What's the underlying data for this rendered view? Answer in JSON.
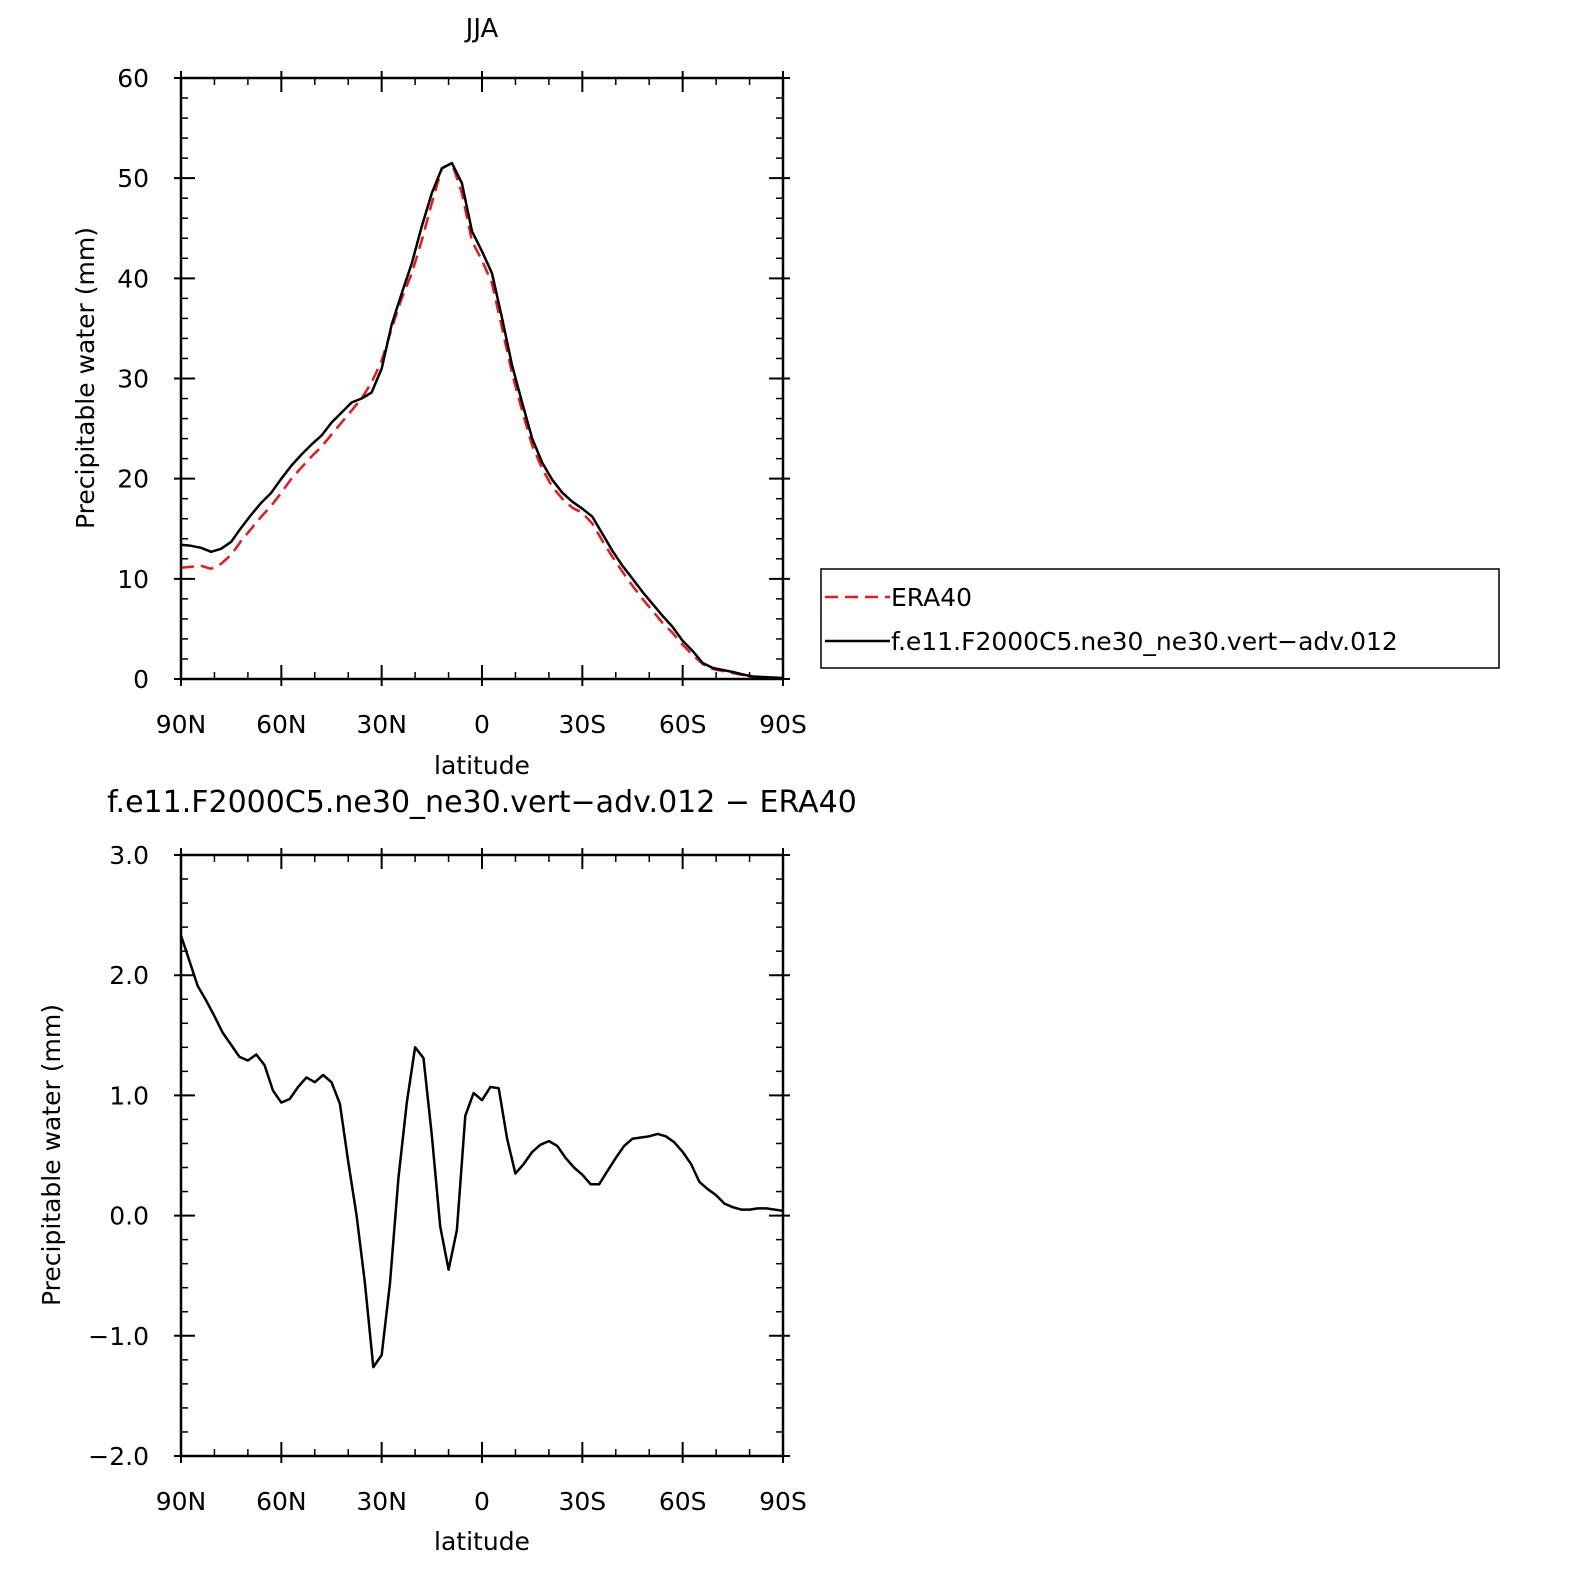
{
  "colors": {
    "era40": "#e8191c",
    "model": "#000000",
    "axis": "#000000",
    "background": "#ffffff"
  },
  "legend": {
    "placement": "right of top panel",
    "items": [
      {
        "label": "ERA40",
        "color": "#e8191c",
        "dashed": true
      },
      {
        "label": "f.e11.F2000C5.ne30_ne30.vert−adv.012",
        "color": "#000000",
        "dashed": false
      }
    ]
  },
  "chart_data": [
    {
      "type": "line",
      "title": "JJA",
      "xlabel": "latitude",
      "ylabel": "Precipitable water (mm)",
      "xlim": [
        90,
        -90
      ],
      "ylim": [
        0,
        60
      ],
      "x_ticks": [
        90,
        60,
        30,
        0,
        -30,
        -60,
        -90
      ],
      "x_tick_labels": [
        "90N",
        "60N",
        "30N",
        "0",
        "30S",
        "60S",
        "90S"
      ],
      "y_ticks": [
        0,
        10,
        20,
        30,
        40,
        50,
        60
      ],
      "y_tick_labels": [
        "0",
        "10",
        "20",
        "30",
        "40",
        "50",
        "60"
      ],
      "x_minor_step": 10,
      "y_minor_step": 2,
      "grid": false,
      "series": [
        {
          "name": "ERA40",
          "color": "#e8191c",
          "dashed": true,
          "x": [
            90,
            87,
            84,
            81,
            78,
            75,
            72,
            69,
            66,
            63,
            60,
            57,
            54,
            51,
            48,
            45,
            42,
            39,
            36,
            33,
            30,
            27,
            24,
            21,
            18,
            15,
            12,
            9,
            6,
            3,
            0,
            -3,
            -6,
            -9,
            -12,
            -15,
            -18,
            -21,
            -24,
            -27,
            -30,
            -33,
            -36,
            -39,
            -42,
            -45,
            -48,
            -51,
            -54,
            -57,
            -60,
            -63,
            -66,
            -69,
            -72,
            -75,
            -78,
            -81,
            -84,
            -87,
            -90
          ],
          "y": [
            11.1,
            11.2,
            11.3,
            11.0,
            11.5,
            12.4,
            13.8,
            15.0,
            16.2,
            17.3,
            18.6,
            20.0,
            21.1,
            22.2,
            23.2,
            24.4,
            25.6,
            26.8,
            28.0,
            29.6,
            31.8,
            35.0,
            38.0,
            40.5,
            43.8,
            47.5,
            51.0,
            51.5,
            48.5,
            43.7,
            41.8,
            39.5,
            35.0,
            30.5,
            26.8,
            23.3,
            21.0,
            19.2,
            18.0,
            17.1,
            16.6,
            15.5,
            13.8,
            12.2,
            10.7,
            9.3,
            8.0,
            6.8,
            5.6,
            4.6,
            3.4,
            2.4,
            1.5,
            1.0,
            0.8,
            0.6,
            0.4,
            0.2,
            0.15,
            0.1,
            0.05
          ]
        },
        {
          "name": "f.e11.F2000C5.ne30_ne30.vert−adv.012",
          "color": "#000000",
          "dashed": false,
          "x": [
            90,
            87,
            84,
            81,
            78,
            75,
            72,
            69,
            66,
            63,
            60,
            57,
            54,
            51,
            48,
            45,
            42,
            39,
            36,
            33,
            30,
            27,
            24,
            21,
            18,
            15,
            12,
            9,
            6,
            3,
            0,
            -3,
            -6,
            -9,
            -12,
            -15,
            -18,
            -21,
            -24,
            -27,
            -30,
            -33,
            -36,
            -39,
            -42,
            -45,
            -48,
            -51,
            -54,
            -57,
            -60,
            -63,
            -66,
            -69,
            -72,
            -75,
            -78,
            -81,
            -84,
            -87,
            -90
          ],
          "y": [
            13.4,
            13.3,
            13.1,
            12.7,
            13.0,
            13.7,
            15.1,
            16.4,
            17.6,
            18.6,
            20.0,
            21.3,
            22.4,
            23.4,
            24.3,
            25.6,
            26.6,
            27.6,
            28.0,
            28.6,
            31.0,
            35.4,
            38.5,
            41.5,
            45.2,
            48.5,
            51.0,
            51.5,
            49.5,
            44.7,
            42.7,
            40.5,
            36.0,
            31.3,
            27.6,
            24.0,
            21.6,
            19.9,
            18.6,
            17.7,
            17.0,
            16.2,
            14.5,
            12.8,
            11.3,
            10.0,
            8.7,
            7.5,
            6.3,
            5.2,
            3.8,
            2.8,
            1.6,
            1.1,
            0.9,
            0.7,
            0.45,
            0.25,
            0.2,
            0.15,
            0.1
          ]
        }
      ]
    },
    {
      "type": "line",
      "title": "f.e11.F2000C5.ne30_ne30.vert−adv.012 − ERA40",
      "xlabel": "latitude",
      "ylabel": "Precipitable water (mm)",
      "xlim": [
        90,
        -90
      ],
      "ylim": [
        -2.0,
        3.0
      ],
      "x_ticks": [
        90,
        60,
        30,
        0,
        -30,
        -60,
        -90
      ],
      "x_tick_labels": [
        "90N",
        "60N",
        "30N",
        "0",
        "30S",
        "60S",
        "90S"
      ],
      "y_ticks": [
        -2.0,
        -1.0,
        0.0,
        1.0,
        2.0,
        3.0
      ],
      "y_tick_labels": [
        "−2.0",
        "−1.0",
        "0.0",
        "1.0",
        "2.0",
        "3.0"
      ],
      "x_minor_step": 10,
      "y_minor_step": 0.2,
      "grid": false,
      "series": [
        {
          "color": "#000000",
          "dashed": false,
          "x": [
            90,
            87.5,
            85,
            82.5,
            80,
            77.5,
            75,
            72.5,
            70,
            67.5,
            65,
            62.5,
            60,
            57.5,
            55,
            52.5,
            50,
            47.5,
            45,
            42.5,
            40,
            37.5,
            35,
            32.5,
            30,
            27.5,
            25,
            22.5,
            20,
            17.5,
            15,
            12.5,
            10,
            7.5,
            5,
            2.5,
            0,
            -2.5,
            -5,
            -7.5,
            -10,
            -12.5,
            -15,
            -17.5,
            -20,
            -22.5,
            -25,
            -27.5,
            -30,
            -32.5,
            -35,
            -37.5,
            -40,
            -42.5,
            -45,
            -47.5,
            -50,
            -52.5,
            -55,
            -57.5,
            -60,
            -62.5,
            -65,
            -67.5,
            -70,
            -72.5,
            -75,
            -77.5,
            -80,
            -82.5,
            -85,
            -87.5,
            -90
          ],
          "y": [
            2.33,
            2.12,
            1.91,
            1.79,
            1.66,
            1.52,
            1.42,
            1.32,
            1.29,
            1.34,
            1.25,
            1.04,
            0.94,
            0.97,
            1.07,
            1.15,
            1.11,
            1.17,
            1.11,
            0.93,
            0.45,
            0.0,
            -0.56,
            -1.26,
            -1.16,
            -0.56,
            0.31,
            0.94,
            1.4,
            1.31,
            0.67,
            -0.09,
            -0.45,
            -0.12,
            0.83,
            1.02,
            0.96,
            1.07,
            1.06,
            0.64,
            0.35,
            0.43,
            0.53,
            0.59,
            0.62,
            0.58,
            0.48,
            0.4,
            0.34,
            0.26,
            0.26,
            0.37,
            0.48,
            0.58,
            0.64,
            0.65,
            0.66,
            0.68,
            0.66,
            0.61,
            0.53,
            0.43,
            0.28,
            0.22,
            0.17,
            0.1,
            0.07,
            0.05,
            0.05,
            0.06,
            0.06,
            0.05,
            0.04
          ]
        }
      ]
    }
  ]
}
